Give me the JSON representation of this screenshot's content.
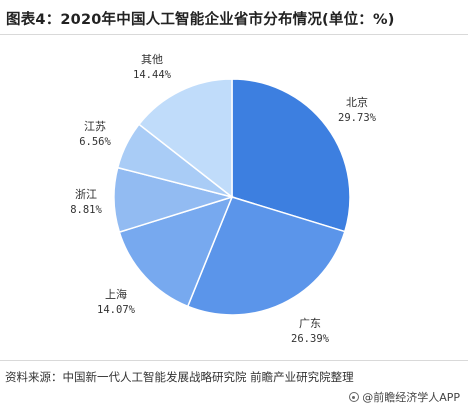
{
  "header": {
    "title": "图表4：2020年中国人工智能企业省市分布情况(单位：%)"
  },
  "footer": {
    "source": "资料来源：中国新一代人工智能发展战略研究院 前瞻产业研究院整理",
    "brand": "@前瞻经济学人APP"
  },
  "colors": {
    "北京": "#3d7fe0",
    "广东": "#5b95ea",
    "上海": "#77a9ef",
    "浙江": "#92bbf2",
    "江苏": "#a9ccf6",
    "其他": "#c0dcfa"
  },
  "chart_data": {
    "type": "pie",
    "title": "图表4：2020年中国人工智能企业省市分布情况(单位：%)",
    "unit": "%",
    "slices": [
      {
        "label": "北京",
        "value": 29.73,
        "value_label": "29.73%"
      },
      {
        "label": "广东",
        "value": 26.39,
        "value_label": "26.39%"
      },
      {
        "label": "上海",
        "value": 14.07,
        "value_label": "14.07%"
      },
      {
        "label": "浙江",
        "value": 8.81,
        "value_label": "8.81%"
      },
      {
        "label": "江苏",
        "value": 6.56,
        "value_label": "6.56%"
      },
      {
        "label": "其他",
        "value": 14.44,
        "value_label": "14.44%"
      }
    ]
  }
}
